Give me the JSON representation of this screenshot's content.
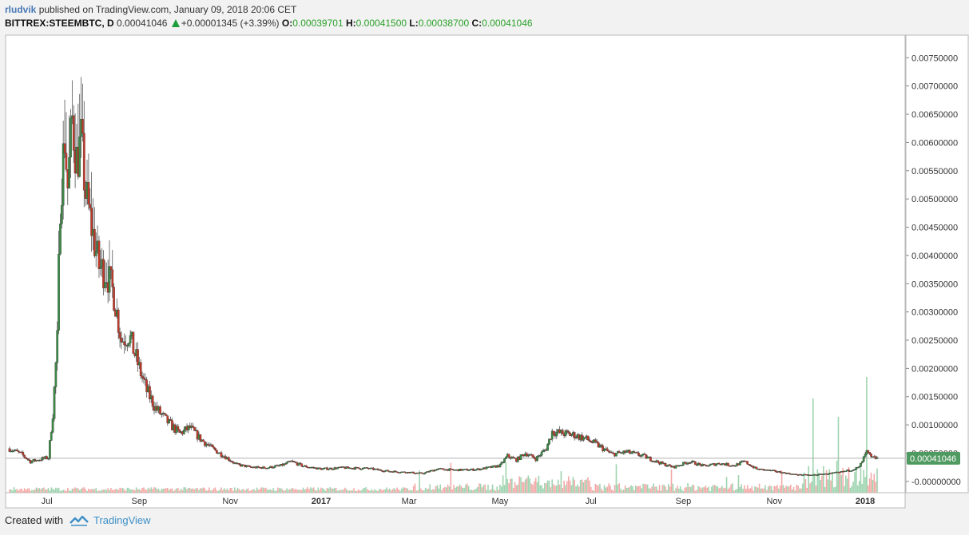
{
  "header": {
    "author": "rludvik",
    "published": "published on TradingView.com, January 09, 2018 20:06 CET"
  },
  "ticker": {
    "symbol": "BITTREX:STEEMBTC, D",
    "last": "0.00041046",
    "change": "+0.00001345 (+3.39%)",
    "open_label": "O:",
    "open": "0.00039701",
    "high_label": "H:",
    "high": "0.00041500",
    "low_label": "L:",
    "low": "0.00038700",
    "close_label": "C:",
    "close": "0.00041046"
  },
  "price_tag": "0.00041046",
  "footer": {
    "created": "Created with",
    "brand": "TradingView"
  },
  "colors": {
    "up": "#3b8a45",
    "down": "#c23a2a",
    "tag": "#4f9a60",
    "vol_up": "#9fd4b0",
    "vol_down": "#f2aaa8"
  },
  "chart_data": {
    "type": "candlestick",
    "y_ticks": [
      "0.00750000",
      "0.00700000",
      "0.00650000",
      "0.00600000",
      "0.00550000",
      "0.00500000",
      "0.00450000",
      "0.00400000",
      "0.00350000",
      "0.00300000",
      "0.00250000",
      "0.00200000",
      "0.00150000",
      "0.00100000",
      "0.00050000",
      "-0.00000000"
    ],
    "ylim": [
      -0.0002,
      0.0079
    ],
    "x_ticks": [
      "Jul",
      "Sep",
      "Nov",
      "2017",
      "Mar",
      "May",
      "Jul",
      "Sep",
      "Nov",
      "2018"
    ],
    "x_tick_bold": [
      false,
      false,
      false,
      true,
      false,
      false,
      false,
      false,
      false,
      true
    ],
    "x_range": [
      "2016-06-06",
      "2018-01-09"
    ],
    "price_line": 0.00041046,
    "close_series": [
      [
        "2016-06-06",
        0.00058
      ],
      [
        "2016-06-14",
        0.00048
      ],
      [
        "2016-06-20",
        0.00035
      ],
      [
        "2016-06-28",
        0.0004
      ],
      [
        "2016-07-02",
        0.00042
      ],
      [
        "2016-07-05",
        0.0012
      ],
      [
        "2016-07-08",
        0.0025
      ],
      [
        "2016-07-10",
        0.005
      ],
      [
        "2016-07-13",
        0.0061
      ],
      [
        "2016-07-15",
        0.0052
      ],
      [
        "2016-07-18",
        0.0064
      ],
      [
        "2016-07-21",
        0.0057
      ],
      [
        "2016-07-24",
        0.006
      ],
      [
        "2016-07-27",
        0.0051
      ],
      [
        "2016-07-31",
        0.0045
      ],
      [
        "2016-08-05",
        0.0038
      ],
      [
        "2016-08-10",
        0.0037
      ],
      [
        "2016-08-15",
        0.0033
      ],
      [
        "2016-08-20",
        0.0025
      ],
      [
        "2016-08-25",
        0.0026
      ],
      [
        "2016-09-01",
        0.002
      ],
      [
        "2016-09-06",
        0.0016
      ],
      [
        "2016-09-12",
        0.0013
      ],
      [
        "2016-09-20",
        0.00105
      ],
      [
        "2016-09-28",
        0.00085
      ],
      [
        "2016-10-05",
        0.00095
      ],
      [
        "2016-10-12",
        0.00075
      ],
      [
        "2016-10-20",
        0.00058
      ],
      [
        "2016-10-28",
        0.00045
      ],
      [
        "2016-11-05",
        0.0003
      ],
      [
        "2016-11-15",
        0.00025
      ],
      [
        "2016-11-25",
        0.00024
      ],
      [
        "2016-12-05",
        0.00028
      ],
      [
        "2016-12-12",
        0.00035
      ],
      [
        "2016-12-20",
        0.00027
      ],
      [
        "2017-01-01",
        0.00022
      ],
      [
        "2017-01-15",
        0.00024
      ],
      [
        "2017-02-01",
        0.00023
      ],
      [
        "2017-02-15",
        0.00018
      ],
      [
        "2017-03-01",
        0.00016
      ],
      [
        "2017-03-10",
        0.00014
      ],
      [
        "2017-03-20",
        0.00022
      ],
      [
        "2017-04-01",
        0.0002
      ],
      [
        "2017-04-15",
        0.00021
      ],
      [
        "2017-04-25",
        0.00025
      ],
      [
        "2017-05-01",
        0.00028
      ],
      [
        "2017-05-06",
        0.00045
      ],
      [
        "2017-05-12",
        0.00038
      ],
      [
        "2017-05-18",
        0.0005
      ],
      [
        "2017-05-25",
        0.0004
      ],
      [
        "2017-06-01",
        0.00058
      ],
      [
        "2017-06-05",
        0.00088
      ],
      [
        "2017-06-12",
        0.00085
      ],
      [
        "2017-06-20",
        0.00082
      ],
      [
        "2017-06-28",
        0.00075
      ],
      [
        "2017-07-05",
        0.00065
      ],
      [
        "2017-07-15",
        0.00048
      ],
      [
        "2017-07-25",
        0.00052
      ],
      [
        "2017-08-05",
        0.00045
      ],
      [
        "2017-08-15",
        0.00034
      ],
      [
        "2017-08-25",
        0.00025
      ],
      [
        "2017-09-05",
        0.00035
      ],
      [
        "2017-09-15",
        0.00027
      ],
      [
        "2017-09-25",
        0.00032
      ],
      [
        "2017-10-05",
        0.00028
      ],
      [
        "2017-10-12",
        0.00035
      ],
      [
        "2017-10-20",
        0.00022
      ],
      [
        "2017-11-01",
        0.00018
      ],
      [
        "2017-11-15",
        0.00012
      ],
      [
        "2017-11-25",
        0.00011
      ],
      [
        "2017-12-05",
        0.00013
      ],
      [
        "2017-12-15",
        0.00016
      ],
      [
        "2017-12-22",
        0.0002
      ],
      [
        "2017-12-28",
        0.00025
      ],
      [
        "2018-01-02",
        0.00052
      ],
      [
        "2018-01-05",
        0.00042
      ],
      [
        "2018-01-09",
        0.00041046
      ]
    ]
  }
}
